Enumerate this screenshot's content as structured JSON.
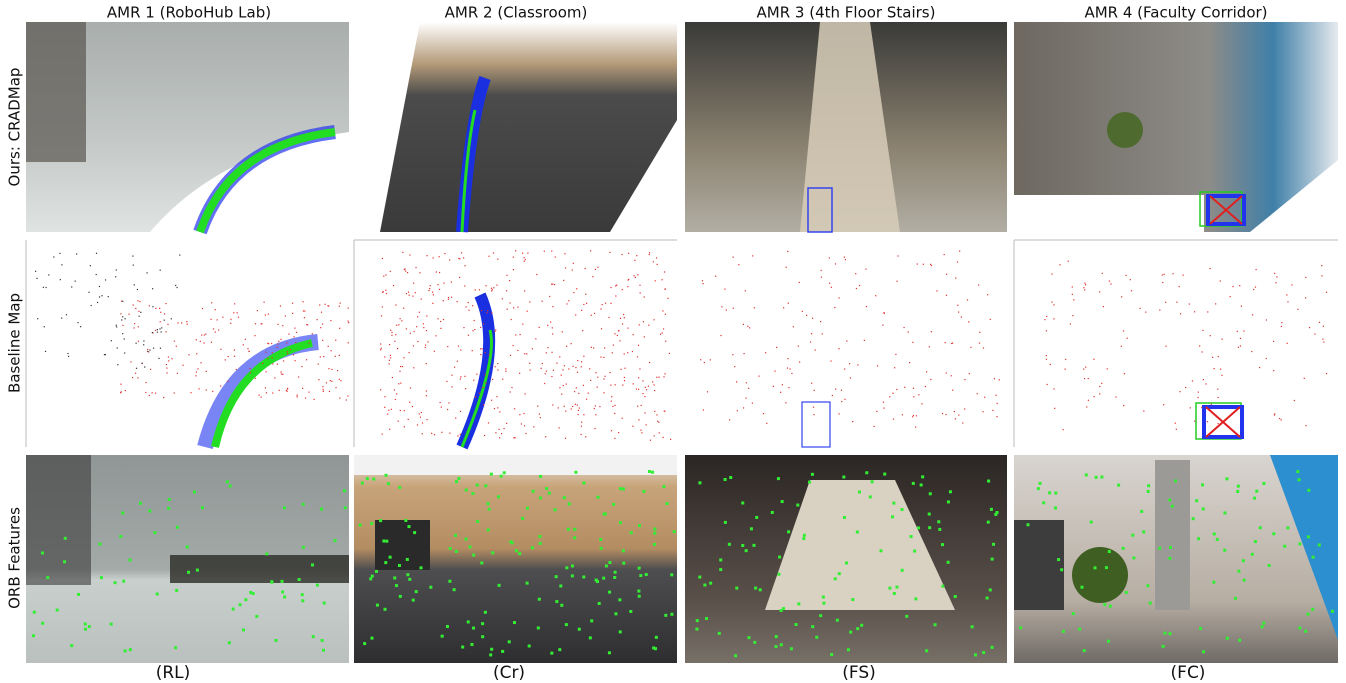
{
  "columns": [
    {
      "title": "AMR 1 (RoboHub Lab)",
      "code": "(RL)"
    },
    {
      "title": "AMR 2 (Classroom)",
      "code": "(Cr)"
    },
    {
      "title": "AMR 3 (4th Floor Stairs)",
      "code": "(FS)"
    },
    {
      "title": "AMR 4 (Faculty Corridor)",
      "code": "(FC)"
    }
  ],
  "rows": [
    {
      "label": "Ours: CRADMap"
    },
    {
      "label": "Baseline Map"
    },
    {
      "label": "ORB Features"
    }
  ]
}
